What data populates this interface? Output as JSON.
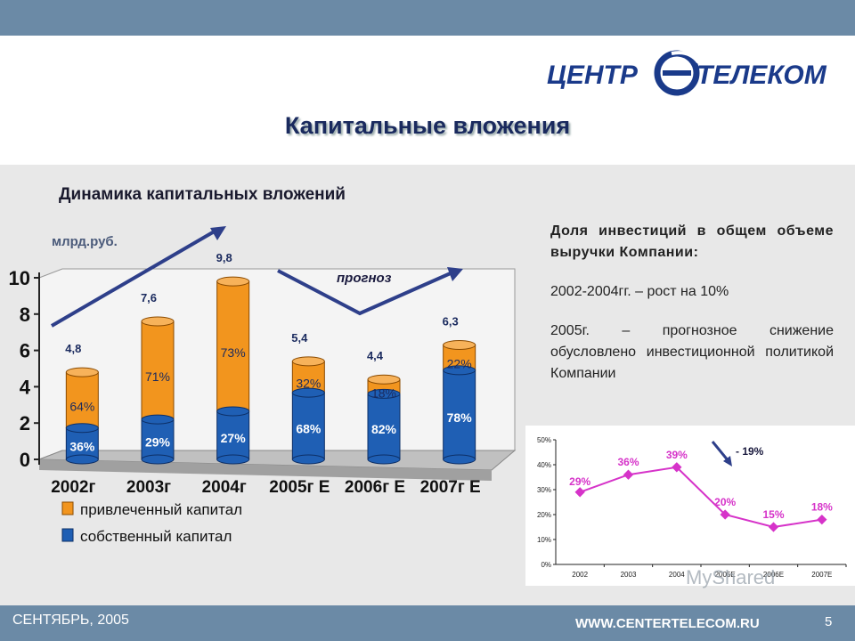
{
  "header": {
    "title": "Капитальные вложения",
    "logo_left": "ЦЕНТР",
    "logo_right": "ТЕЛЕКОМ"
  },
  "left_chart_text": {
    "subtitle": "Динамика капитальных вложений",
    "unit": "млрд.руб.",
    "forecast_label": "прогноз"
  },
  "right_text": {
    "heading": "Доля инвестиций в общем объеме выручки Компании:",
    "point1": "2002-2004гг. – рост на 10%",
    "point2": " 2005г. – прогнозное снижение обусловлено инвестиционной политикой Компании"
  },
  "footer": {
    "date": "СЕНТЯБРЬ, 2005",
    "url": "WWW.CENTERTELECOM.RU",
    "page": "5"
  },
  "watermark": "MyShared",
  "colors": {
    "attracted": "#f2951e",
    "own": "#1f5fb4",
    "line": "#d633c9",
    "accent": "#1a2a5e"
  },
  "chart_data": [
    {
      "type": "bar",
      "stacked": true,
      "categories": [
        "2002г",
        "2003г",
        "2004г",
        "2005г Е",
        "2006г Е",
        "2007г Е"
      ],
      "totals": [
        4.8,
        7.6,
        9.8,
        5.4,
        4.4,
        6.3
      ],
      "total_labels": [
        "4,8",
        "7,6",
        "9,8",
        "5,4",
        "4,4",
        "6,3"
      ],
      "series": [
        {
          "name": "собственный капитал",
          "values": [
            1.73,
            2.2,
            2.65,
            3.67,
            3.61,
            4.91
          ],
          "labels": [
            "36%",
            "29%",
            "27%",
            "68%",
            "82%",
            "78%"
          ]
        },
        {
          "name": "привлеченный капитал",
          "values": [
            3.07,
            5.4,
            7.15,
            1.73,
            0.79,
            1.39
          ],
          "labels": [
            "64%",
            "71%",
            "73%",
            "32%",
            "18%",
            "22%"
          ]
        }
      ],
      "yticks": [
        "0",
        "2",
        "4",
        "6",
        "8",
        "10"
      ],
      "ylim": [
        0,
        10
      ],
      "legend_position": "bottom-left",
      "arrows": [
        "up",
        "forecast-dip"
      ]
    },
    {
      "type": "line",
      "categories": [
        "2002",
        "2003",
        "2004",
        "2005E",
        "2006E",
        "2007E"
      ],
      "values": [
        29,
        36,
        39,
        20,
        15,
        18
      ],
      "labels": [
        "29%",
        "36%",
        "39%",
        "20%",
        "15%",
        "18%"
      ],
      "yticks": [
        "0%",
        "10%",
        "20%",
        "30%",
        "40%",
        "50%"
      ],
      "ylim": [
        0,
        50
      ],
      "annotation": "- 19%"
    }
  ]
}
